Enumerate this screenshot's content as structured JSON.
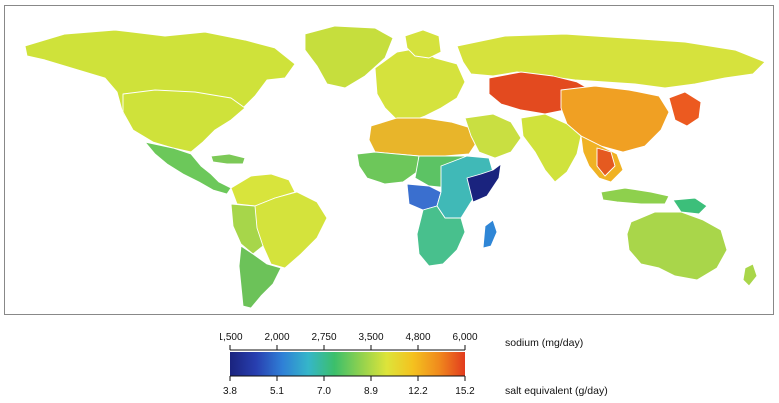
{
  "legend": {
    "top_axis": {
      "title": "sodium (mg/day)",
      "ticks": [
        "1,500",
        "2,000",
        "2,750",
        "3,500",
        "4,800",
        "6,000"
      ]
    },
    "bottom_axis": {
      "title": "salt equivalent (g/day)",
      "ticks": [
        "3.8",
        "5.1",
        "7.0",
        "8.9",
        "12.2",
        "15.2"
      ]
    },
    "color_stops": [
      "#1a237e",
      "#283fb0",
      "#2f7fd6",
      "#35b6c9",
      "#3cbf6b",
      "#8fd14f",
      "#dde43a",
      "#f4c21f",
      "#f08a1d",
      "#e23b1e"
    ]
  },
  "map": {
    "background": "#ffffff",
    "region_colors": {
      "north_america": "#cfe23a",
      "greenland": "#c6de3d",
      "central_america": "#6cc85a",
      "caribbean": "#7cc957",
      "south_america_north": "#d8e43c",
      "brazil": "#d4e33c",
      "andes": "#a7d64a",
      "southern_cone": "#6cc259",
      "europe": "#d5e23d",
      "russia": "#d6e23d",
      "north_africa": "#e8b52a",
      "west_africa": "#6dc75a",
      "sahel_central": "#5cc364",
      "east_africa": "#40b9b7",
      "horn_somalia": "#1a237e",
      "drc": "#3a6fcf",
      "southern_africa": "#48c08d",
      "madagascar": "#2f86d6",
      "arabia": "#c9df41",
      "central_asia": "#e34a1f",
      "china": "#f0a023",
      "korea_japan": "#ec5a20",
      "south_asia": "#d0e23c",
      "southeast_asia": "#f0b224",
      "thailand": "#e55a20",
      "indonesia": "#8ed04d",
      "png": "#3cbf7a",
      "australia": "#a9d64a",
      "new_zealand": "#a9d64a"
    }
  }
}
